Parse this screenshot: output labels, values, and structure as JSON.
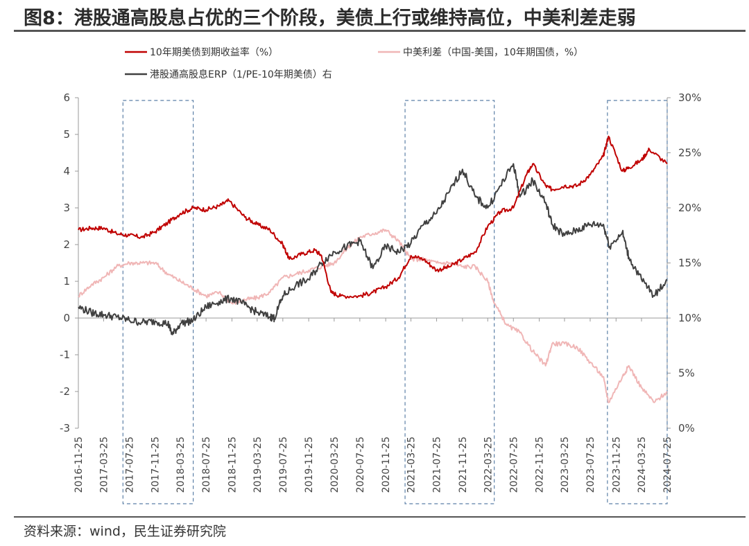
{
  "title": "图8：港股通高股息占优的三个阶段，美债上行或维持高位，中美利差走弱",
  "source": "资料来源：wind，民生证券研究院",
  "chart_data": {
    "type": "line",
    "legend_position": "top",
    "x_ticks": [
      "2016-11-25",
      "2017-03-25",
      "2017-07-25",
      "2017-11-25",
      "2018-03-25",
      "2018-07-25",
      "2018-11-25",
      "2019-03-25",
      "2019-07-25",
      "2019-11-25",
      "2020-03-25",
      "2020-07-25",
      "2020-11-25",
      "2021-03-25",
      "2021-07-25",
      "2021-11-25",
      "2022-03-25",
      "2022-07-25",
      "2022-11-25",
      "2023-03-25",
      "2023-07-25",
      "2023-11-25",
      "2024-03-25",
      "2024-07-25"
    ],
    "y_left": {
      "range": [
        -3,
        6
      ],
      "ticks": [
        -3,
        -2,
        -1,
        0,
        1,
        2,
        3,
        4,
        5,
        6
      ]
    },
    "y_right": {
      "range": [
        0,
        30
      ],
      "ticks": [
        "0%",
        "5%",
        "10%",
        "15%",
        "20%",
        "25%",
        "30%"
      ]
    },
    "highlight_periods": [
      {
        "start": "2017-06-25",
        "end": "2018-05-25"
      },
      {
        "start": "2021-02-25",
        "end": "2022-04-25"
      },
      {
        "start": "2023-10-15",
        "end": "2024-07-25"
      }
    ],
    "series": [
      {
        "name": "10年期美债到期收益率（%）",
        "axis": "left",
        "color": "#c00000",
        "x": [
          "2016-11-25",
          "2017-01-25",
          "2017-03-25",
          "2017-05-25",
          "2017-07-25",
          "2017-09-25",
          "2017-11-25",
          "2018-01-25",
          "2018-03-25",
          "2018-05-25",
          "2018-07-25",
          "2018-09-25",
          "2018-11-10",
          "2019-01-25",
          "2019-03-25",
          "2019-05-25",
          "2019-07-25",
          "2019-08-25",
          "2019-10-25",
          "2019-12-25",
          "2020-01-25",
          "2020-03-10",
          "2020-04-25",
          "2020-07-25",
          "2020-09-25",
          "2020-11-25",
          "2021-01-25",
          "2021-03-25",
          "2021-05-25",
          "2021-07-25",
          "2021-09-25",
          "2021-11-25",
          "2022-01-25",
          "2022-03-25",
          "2022-05-25",
          "2022-07-25",
          "2022-09-25",
          "2022-10-25",
          "2022-12-25",
          "2023-01-25",
          "2023-03-25",
          "2023-05-25",
          "2023-07-25",
          "2023-09-25",
          "2023-10-20",
          "2023-12-25",
          "2024-01-25",
          "2024-03-25",
          "2024-05-01",
          "2024-07-25"
        ],
        "y": [
          2.4,
          2.45,
          2.45,
          2.3,
          2.25,
          2.2,
          2.35,
          2.6,
          2.85,
          3.0,
          2.95,
          3.05,
          3.2,
          2.75,
          2.55,
          2.4,
          2.0,
          1.6,
          1.75,
          1.85,
          1.7,
          0.7,
          0.6,
          0.6,
          0.7,
          0.85,
          1.1,
          1.7,
          1.6,
          1.3,
          1.4,
          1.6,
          1.8,
          2.5,
          2.9,
          3.0,
          3.9,
          4.2,
          3.6,
          3.5,
          3.6,
          3.6,
          3.9,
          4.4,
          4.95,
          4.0,
          4.1,
          4.3,
          4.6,
          4.2
        ]
      },
      {
        "name": "中美利差（中国-美国，10年期国债，%）",
        "axis": "left",
        "color": "#f0b6b6",
        "x": [
          "2016-11-25",
          "2017-01-25",
          "2017-03-25",
          "2017-05-25",
          "2017-07-25",
          "2017-09-25",
          "2017-11-25",
          "2018-01-25",
          "2018-03-25",
          "2018-05-25",
          "2018-07-25",
          "2018-09-25",
          "2018-11-25",
          "2019-01-25",
          "2019-03-25",
          "2019-05-25",
          "2019-07-25",
          "2019-09-25",
          "2019-11-25",
          "2020-01-25",
          "2020-03-25",
          "2020-05-25",
          "2020-07-25",
          "2020-09-25",
          "2020-11-25",
          "2021-01-25",
          "2021-03-25",
          "2021-05-25",
          "2021-07-25",
          "2021-09-25",
          "2021-11-25",
          "2022-01-25",
          "2022-03-25",
          "2022-04-25",
          "2022-06-25",
          "2022-08-25",
          "2022-10-25",
          "2022-12-25",
          "2023-01-25",
          "2023-03-25",
          "2023-05-25",
          "2023-07-25",
          "2023-09-25",
          "2023-10-20",
          "2023-12-25",
          "2024-01-25",
          "2024-03-25",
          "2024-05-25",
          "2024-07-25"
        ],
        "y": [
          0.6,
          0.9,
          1.1,
          1.4,
          1.5,
          1.5,
          1.5,
          1.2,
          1.0,
          0.8,
          0.6,
          0.7,
          0.4,
          0.5,
          0.55,
          0.7,
          1.1,
          1.2,
          1.3,
          1.4,
          1.5,
          1.9,
          2.2,
          2.3,
          2.4,
          2.1,
          1.6,
          1.6,
          1.5,
          1.5,
          1.4,
          1.4,
          1.0,
          0.4,
          -0.2,
          -0.4,
          -0.9,
          -1.3,
          -0.7,
          -0.7,
          -0.8,
          -1.2,
          -1.6,
          -2.3,
          -1.6,
          -1.3,
          -1.9,
          -2.3,
          -2.0
        ]
      },
      {
        "name": "港股通高股息ERP（1/PE-10年期美债）右",
        "axis": "right",
        "color": "#404040",
        "x": [
          "2016-11-25",
          "2017-01-25",
          "2017-03-25",
          "2017-05-25",
          "2017-07-25",
          "2017-09-25",
          "2017-11-25",
          "2018-01-25",
          "2018-02-15",
          "2018-03-25",
          "2018-05-25",
          "2018-07-25",
          "2018-09-25",
          "2018-11-25",
          "2019-01-25",
          "2019-03-25",
          "2019-05-25",
          "2019-06-15",
          "2019-07-25",
          "2019-09-25",
          "2019-11-25",
          "2020-01-25",
          "2020-03-25",
          "2020-05-25",
          "2020-07-25",
          "2020-09-25",
          "2020-11-25",
          "2021-01-25",
          "2021-03-25",
          "2021-05-25",
          "2021-07-25",
          "2021-09-25",
          "2021-11-25",
          "2022-01-25",
          "2022-03-25",
          "2022-05-25",
          "2022-07-25",
          "2022-08-25",
          "2022-10-25",
          "2022-12-25",
          "2023-01-25",
          "2023-03-25",
          "2023-05-25",
          "2023-07-25",
          "2023-09-25",
          "2023-10-25",
          "2023-12-25",
          "2024-01-25",
          "2024-03-25",
          "2024-05-25",
          "2024-07-25"
        ],
        "y": [
          11.0,
          10.5,
          10.3,
          10.1,
          9.8,
          9.6,
          9.7,
          9.5,
          8.5,
          9.5,
          9.8,
          11.0,
          11.5,
          11.8,
          11.2,
          10.5,
          10.1,
          10.0,
          12.0,
          13.0,
          13.5,
          15.0,
          16.0,
          16.5,
          17.0,
          14.5,
          16.5,
          16.0,
          16.8,
          18.5,
          19.5,
          21.5,
          23.5,
          21.0,
          20.0,
          22.0,
          24.0,
          21.0,
          22.5,
          20.5,
          18.5,
          17.5,
          18.0,
          18.5,
          18.5,
          16.5,
          17.8,
          15.5,
          13.5,
          12.0,
          13.5
        ]
      }
    ]
  }
}
